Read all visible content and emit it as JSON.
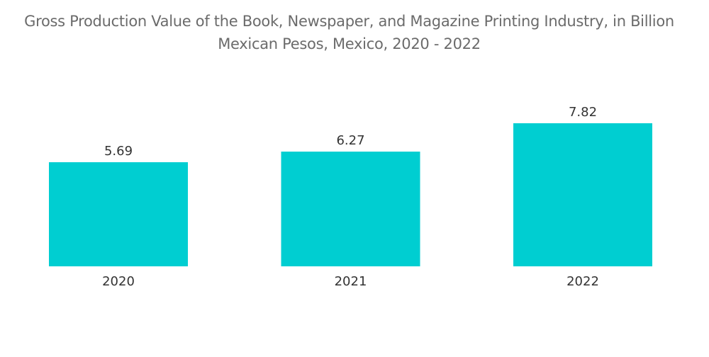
{
  "chart_data": {
    "type": "bar",
    "title_lines": [
      "Gross Production Value of the Book, Newspaper, and Magazine Printing Industry, in Billion",
      "Mexican Pesos, Mexico, 2020 - 2022"
    ],
    "categories": [
      "2020",
      "2021",
      "2022"
    ],
    "values": [
      5.69,
      6.27,
      7.82
    ],
    "value_labels": [
      "5.69",
      "6.27",
      "7.82"
    ],
    "xlabel": "",
    "ylabel": "",
    "ylim": [
      0,
      7.82
    ],
    "grid": false,
    "bar_color": "#00CED1"
  }
}
